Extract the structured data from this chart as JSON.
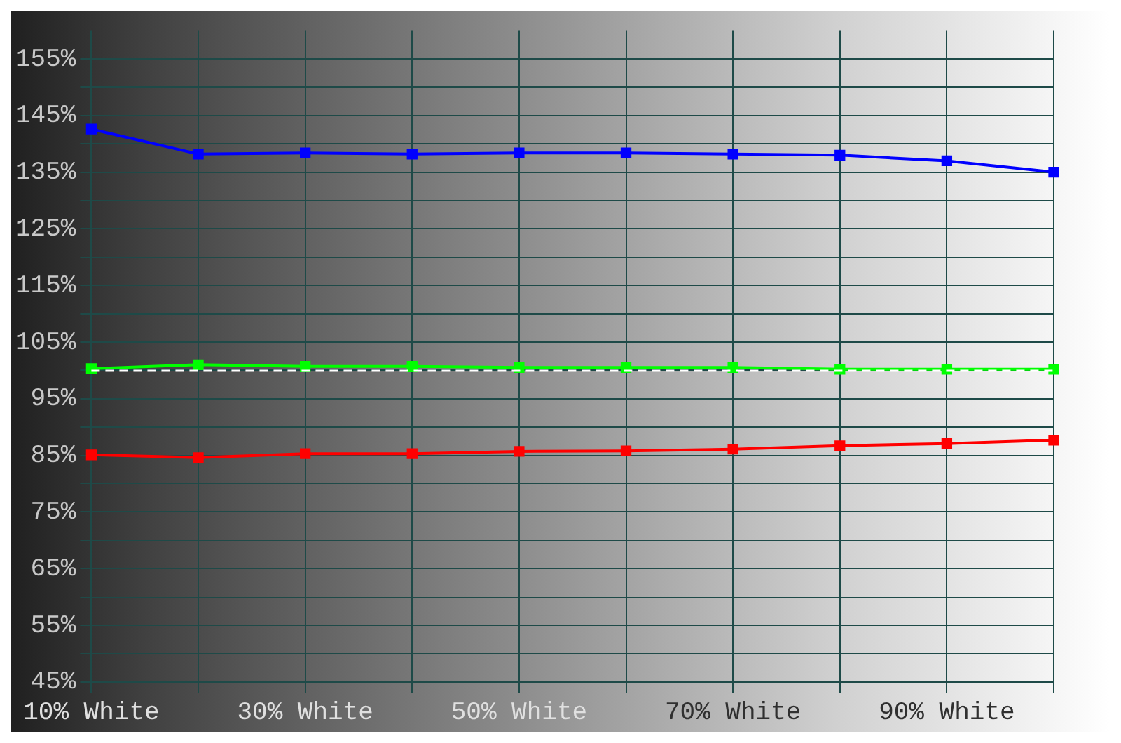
{
  "chart_data": {
    "type": "line",
    "categories": [
      "10% White",
      null,
      "30% White",
      null,
      "50% White",
      null,
      "70% White",
      null,
      "90% White",
      null
    ],
    "series": [
      {
        "color": "#0000ff",
        "values": [
          142.6,
          138.2,
          138.4,
          138.2,
          138.4,
          138.4,
          138.2,
          138.0,
          137.0,
          135.0
        ]
      },
      {
        "color": "#00ff00",
        "values": [
          100.3,
          101.0,
          100.7,
          100.7,
          100.5,
          100.5,
          100.5,
          100.2,
          100.2,
          100.2
        ]
      },
      {
        "color": "#ff0000",
        "values": [
          85.1,
          84.6,
          85.3,
          85.3,
          85.7,
          85.8,
          86.1,
          86.7,
          87.1,
          87.7
        ]
      }
    ],
    "ylim": [
      45,
      160
    ],
    "yticks": [
      {
        "value": 45,
        "label": "45%"
      },
      {
        "value": 50,
        "label": null
      },
      {
        "value": 55,
        "label": "55%"
      },
      {
        "value": 60,
        "label": null
      },
      {
        "value": 65,
        "label": "65%"
      },
      {
        "value": 70,
        "label": null
      },
      {
        "value": 75,
        "label": "75%"
      },
      {
        "value": 80,
        "label": null
      },
      {
        "value": 85,
        "label": "85%"
      },
      {
        "value": 90,
        "label": null
      },
      {
        "value": 95,
        "label": "95%"
      },
      {
        "value": 100,
        "label": null
      },
      {
        "value": 105,
        "label": "105%"
      },
      {
        "value": 110,
        "label": null
      },
      {
        "value": 115,
        "label": "115%"
      },
      {
        "value": 120,
        "label": null
      },
      {
        "value": 125,
        "label": "125%"
      },
      {
        "value": 130,
        "label": null
      },
      {
        "value": 135,
        "label": "135%"
      },
      {
        "value": 140,
        "label": null
      },
      {
        "value": 145,
        "label": "145%"
      },
      {
        "value": 150,
        "label": null
      },
      {
        "value": 155,
        "label": "155%"
      }
    ],
    "grid": true,
    "marker": "square",
    "line_style": "solid",
    "ref_lines": [
      {
        "axis": "y",
        "value": 100,
        "color": "#ffffff",
        "line_style": "dashed"
      }
    ]
  }
}
